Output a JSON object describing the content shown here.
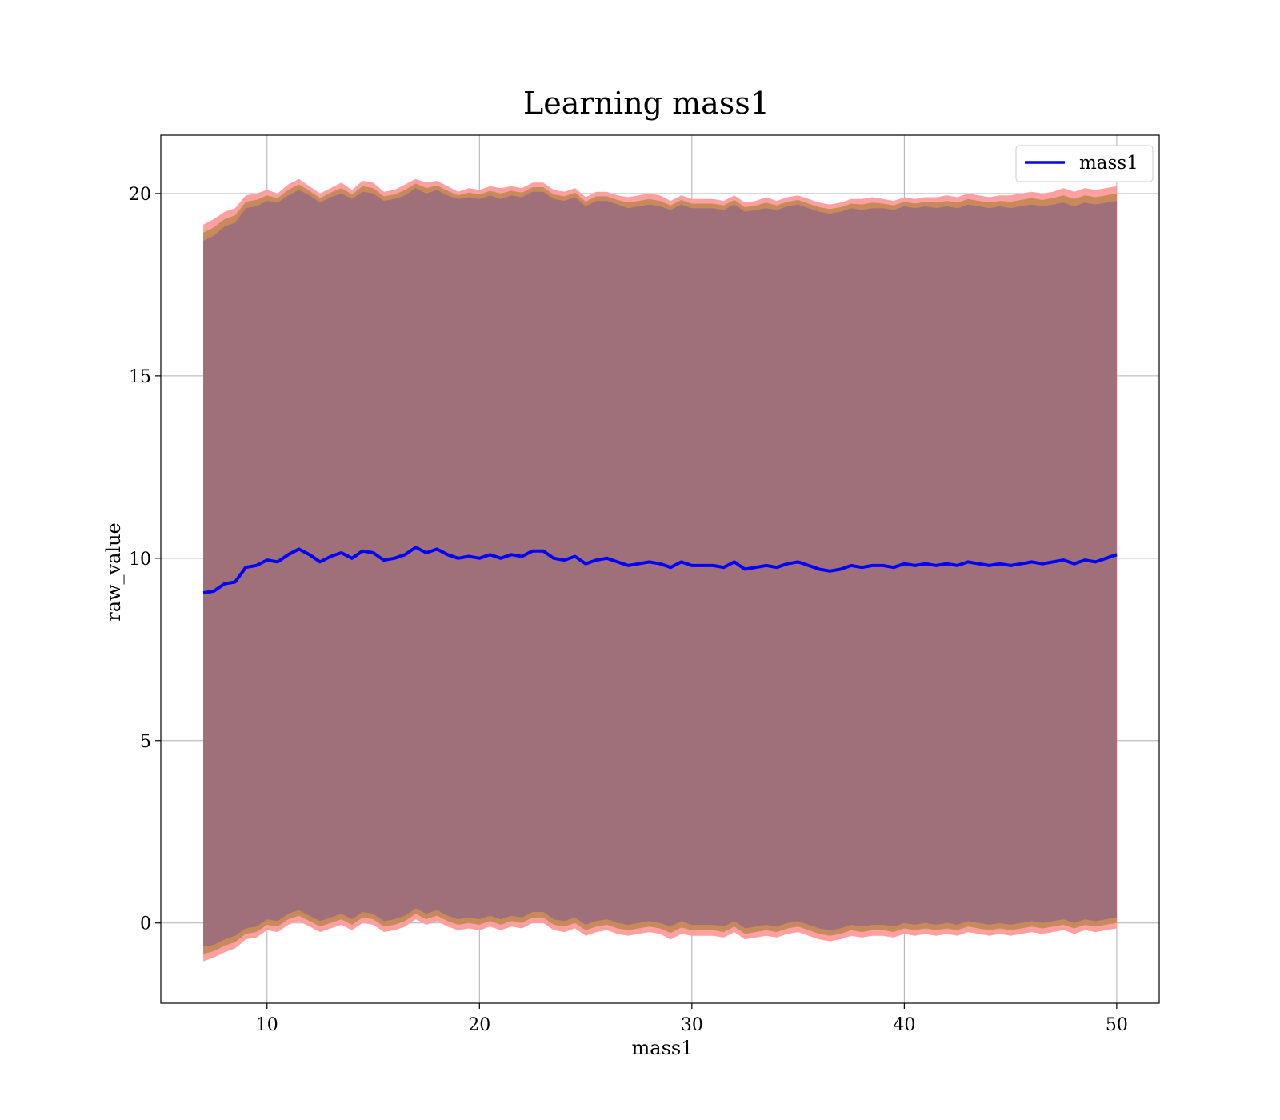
{
  "chart_data": {
    "type": "line",
    "title": "Learning mass1",
    "xlabel": "mass1",
    "ylabel": "raw_value",
    "xlim": [
      5,
      52
    ],
    "ylim": [
      -2.2,
      21.6
    ],
    "xticks": [
      10,
      20,
      30,
      40,
      50
    ],
    "yticks": [
      0,
      5,
      10,
      15,
      20
    ],
    "grid": true,
    "legend": "top-right",
    "series": [
      {
        "name": "mass1",
        "color": "#0000ff",
        "x": [
          7.0,
          7.5,
          8.0,
          8.5,
          9.0,
          9.5,
          10.0,
          10.5,
          11.0,
          11.5,
          12.0,
          12.5,
          13.0,
          13.5,
          14.0,
          14.5,
          15.0,
          15.5,
          16.0,
          16.5,
          17.0,
          17.5,
          18.0,
          18.5,
          19.0,
          19.5,
          20.0,
          20.5,
          21.0,
          21.5,
          22.0,
          22.5,
          23.0,
          23.5,
          24.0,
          24.5,
          25.0,
          25.5,
          26.0,
          26.5,
          27.0,
          27.5,
          28.0,
          28.5,
          29.0,
          29.5,
          30.0,
          30.5,
          31.0,
          31.5,
          32.0,
          32.5,
          33.0,
          33.5,
          34.0,
          34.5,
          35.0,
          35.5,
          36.0,
          36.5,
          37.0,
          37.5,
          38.0,
          38.5,
          39.0,
          39.5,
          40.0,
          40.5,
          41.0,
          41.5,
          42.0,
          42.5,
          43.0,
          43.5,
          44.0,
          44.5,
          45.0,
          45.5,
          46.0,
          46.5,
          47.0,
          47.5,
          48.0,
          48.5,
          49.0,
          49.5,
          50.0
        ],
        "y": [
          9.05,
          9.1,
          9.3,
          9.35,
          9.75,
          9.8,
          9.95,
          9.9,
          10.1,
          10.25,
          10.1,
          9.9,
          10.05,
          10.15,
          10.0,
          10.2,
          10.15,
          9.95,
          10.0,
          10.1,
          10.3,
          10.15,
          10.25,
          10.1,
          10.0,
          10.05,
          10.0,
          10.1,
          10.0,
          10.1,
          10.05,
          10.2,
          10.2,
          10.0,
          9.95,
          10.05,
          9.85,
          9.95,
          10.0,
          9.9,
          9.8,
          9.85,
          9.9,
          9.85,
          9.75,
          9.9,
          9.8,
          9.8,
          9.8,
          9.75,
          9.9,
          9.7,
          9.75,
          9.8,
          9.75,
          9.85,
          9.9,
          9.8,
          9.7,
          9.65,
          9.7,
          9.8,
          9.75,
          9.8,
          9.8,
          9.75,
          9.85,
          9.8,
          9.85,
          9.8,
          9.85,
          9.8,
          9.9,
          9.85,
          9.8,
          9.85,
          9.8,
          9.85,
          9.9,
          9.85,
          9.9,
          9.95,
          9.85,
          9.95,
          9.9,
          10.0,
          10.1
        ],
        "band_outer_upper": [
          19.15,
          19.3,
          19.5,
          19.6,
          19.95,
          20.0,
          20.1,
          20.0,
          20.25,
          20.4,
          20.2,
          20.0,
          20.15,
          20.3,
          20.1,
          20.35,
          20.3,
          20.05,
          20.1,
          20.25,
          20.4,
          20.3,
          20.35,
          20.2,
          20.05,
          20.15,
          20.1,
          20.2,
          20.15,
          20.2,
          20.15,
          20.3,
          20.3,
          20.1,
          20.05,
          20.15,
          19.9,
          20.05,
          20.05,
          19.95,
          19.9,
          19.95,
          20.0,
          19.95,
          19.8,
          19.95,
          19.85,
          19.85,
          19.85,
          19.8,
          19.95,
          19.75,
          19.8,
          19.9,
          19.8,
          19.9,
          19.95,
          19.85,
          19.75,
          19.7,
          19.75,
          19.85,
          19.85,
          19.9,
          19.85,
          19.8,
          19.9,
          19.85,
          19.9,
          19.9,
          19.95,
          19.9,
          20.0,
          19.95,
          19.9,
          19.95,
          19.95,
          20.0,
          20.05,
          20.0,
          20.05,
          20.15,
          20.05,
          20.15,
          20.1,
          20.15,
          20.2
        ],
        "band_inner_upper": [
          18.7,
          18.85,
          19.1,
          19.2,
          19.6,
          19.65,
          19.8,
          19.75,
          19.95,
          20.1,
          19.95,
          19.75,
          19.9,
          20.0,
          19.85,
          20.05,
          20.0,
          19.8,
          19.85,
          19.95,
          20.15,
          20.0,
          20.1,
          19.95,
          19.85,
          19.9,
          19.85,
          19.95,
          19.85,
          19.95,
          19.9,
          20.05,
          20.05,
          19.85,
          19.8,
          19.9,
          19.65,
          19.8,
          19.8,
          19.7,
          19.6,
          19.65,
          19.7,
          19.65,
          19.55,
          19.7,
          19.6,
          19.6,
          19.6,
          19.55,
          19.7,
          19.5,
          19.55,
          19.6,
          19.55,
          19.65,
          19.7,
          19.6,
          19.5,
          19.45,
          19.5,
          19.6,
          19.55,
          19.6,
          19.6,
          19.55,
          19.65,
          19.6,
          19.65,
          19.6,
          19.65,
          19.6,
          19.7,
          19.65,
          19.6,
          19.65,
          19.6,
          19.65,
          19.7,
          19.65,
          19.7,
          19.75,
          19.65,
          19.75,
          19.7,
          19.75,
          19.8
        ],
        "band_inner_lower": [
          -0.65,
          -0.6,
          -0.45,
          -0.35,
          -0.15,
          -0.1,
          0.1,
          0.05,
          0.25,
          0.35,
          0.2,
          0.05,
          0.15,
          0.25,
          0.1,
          0.3,
          0.25,
          0.05,
          0.1,
          0.2,
          0.4,
          0.25,
          0.35,
          0.2,
          0.1,
          0.15,
          0.1,
          0.2,
          0.1,
          0.2,
          0.15,
          0.3,
          0.3,
          0.1,
          0.05,
          0.15,
          -0.05,
          0.05,
          0.1,
          0.0,
          -0.05,
          0.0,
          0.05,
          0.0,
          -0.1,
          0.05,
          -0.05,
          -0.05,
          -0.05,
          -0.1,
          0.05,
          -0.15,
          -0.1,
          -0.05,
          -0.1,
          0.0,
          0.05,
          -0.05,
          -0.15,
          -0.2,
          -0.15,
          -0.05,
          -0.1,
          -0.05,
          -0.05,
          -0.1,
          0.0,
          -0.05,
          0.0,
          -0.05,
          0.0,
          -0.05,
          0.05,
          0.0,
          -0.05,
          0.0,
          -0.05,
          0.0,
          0.05,
          0.0,
          0.05,
          0.1,
          0.0,
          0.1,
          0.05,
          0.1,
          0.15
        ],
        "band_outer_lower": [
          -1.05,
          -0.95,
          -0.8,
          -0.7,
          -0.45,
          -0.4,
          -0.2,
          -0.25,
          -0.05,
          0.05,
          -0.1,
          -0.25,
          -0.15,
          -0.05,
          -0.2,
          0.0,
          -0.05,
          -0.25,
          -0.2,
          -0.1,
          0.1,
          -0.05,
          0.05,
          -0.1,
          -0.2,
          -0.15,
          -0.2,
          -0.1,
          -0.2,
          -0.1,
          -0.15,
          0.0,
          0.0,
          -0.2,
          -0.25,
          -0.15,
          -0.35,
          -0.25,
          -0.2,
          -0.3,
          -0.35,
          -0.3,
          -0.25,
          -0.3,
          -0.45,
          -0.3,
          -0.35,
          -0.35,
          -0.35,
          -0.4,
          -0.25,
          -0.45,
          -0.4,
          -0.35,
          -0.4,
          -0.3,
          -0.25,
          -0.35,
          -0.45,
          -0.5,
          -0.45,
          -0.35,
          -0.4,
          -0.35,
          -0.35,
          -0.4,
          -0.3,
          -0.35,
          -0.3,
          -0.35,
          -0.3,
          -0.35,
          -0.25,
          -0.3,
          -0.35,
          -0.3,
          -0.35,
          -0.3,
          -0.25,
          -0.3,
          -0.25,
          -0.2,
          -0.3,
          -0.2,
          -0.25,
          -0.2,
          -0.15
        ],
        "band_colors": {
          "outer": "#ffa0a0",
          "mid": "#c88a5a",
          "inner": "#a0707a"
        }
      }
    ]
  }
}
